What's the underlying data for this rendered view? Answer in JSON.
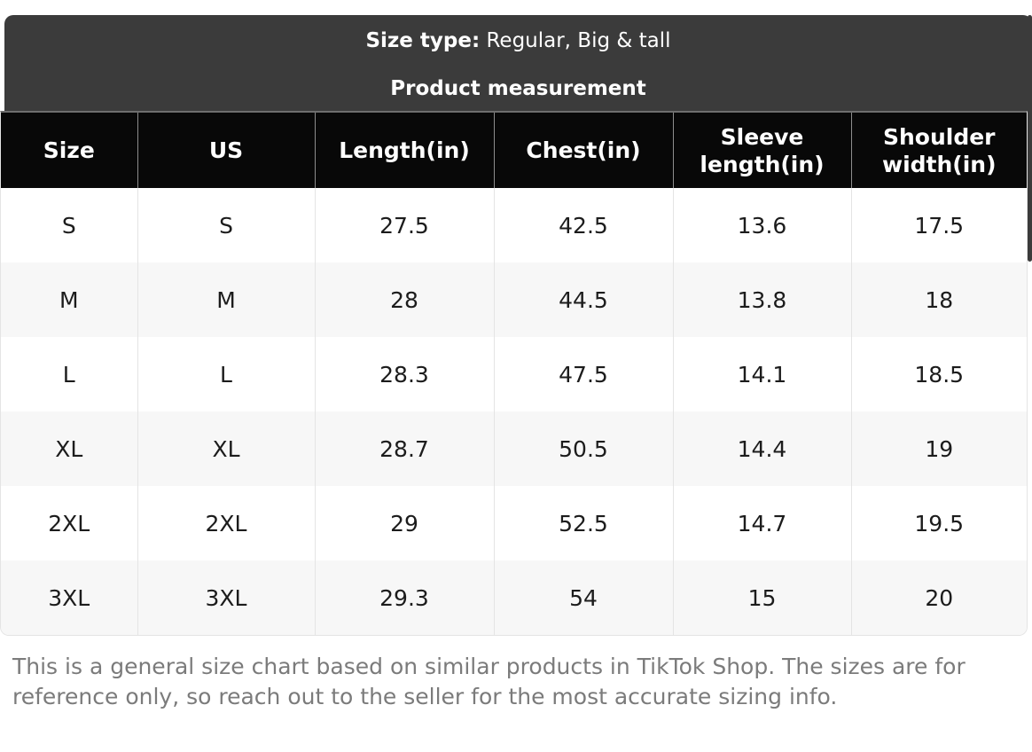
{
  "header": {
    "size_type_label": "Size type:",
    "size_type_value": "Regular, Big & tall",
    "subtitle": "Product measurement"
  },
  "table": {
    "columns": [
      "Size",
      "US",
      "Length(in)",
      "Chest(in)",
      "Sleeve length(in)",
      "Shoulder width(in)"
    ],
    "rows": [
      [
        "S",
        "S",
        "27.5",
        "42.5",
        "13.6",
        "17.5"
      ],
      [
        "M",
        "M",
        "28",
        "44.5",
        "13.8",
        "18"
      ],
      [
        "L",
        "L",
        "28.3",
        "47.5",
        "14.1",
        "18.5"
      ],
      [
        "XL",
        "XL",
        "28.7",
        "50.5",
        "14.4",
        "19"
      ],
      [
        "2XL",
        "2XL",
        "29",
        "52.5",
        "14.7",
        "19.5"
      ],
      [
        "3XL",
        "3XL",
        "29.3",
        "54",
        "15",
        "20"
      ]
    ]
  },
  "chart_data": {
    "type": "table",
    "title": "Product measurement",
    "columns": [
      "Size",
      "US",
      "Length(in)",
      "Chest(in)",
      "Sleeve length(in)",
      "Shoulder width(in)"
    ],
    "rows": [
      [
        "S",
        "S",
        27.5,
        42.5,
        13.6,
        17.5
      ],
      [
        "M",
        "M",
        28,
        44.5,
        13.8,
        18
      ],
      [
        "L",
        "L",
        28.3,
        47.5,
        14.1,
        18.5
      ],
      [
        "XL",
        "XL",
        28.7,
        50.5,
        14.4,
        19
      ],
      [
        "2XL",
        "2XL",
        29,
        52.5,
        14.7,
        19.5
      ],
      [
        "3XL",
        "3XL",
        29.3,
        54,
        15,
        20
      ]
    ]
  },
  "footer": {
    "note": "This is a general size chart based on similar products in TikTok Shop. The sizes are for reference only, so reach out to the seller for the most accurate sizing info."
  },
  "colors": {
    "band": "#3b3b3b",
    "header_bg": "#080808",
    "row_alt": "#f7f7f7",
    "note_text": "#7b7b7b"
  }
}
